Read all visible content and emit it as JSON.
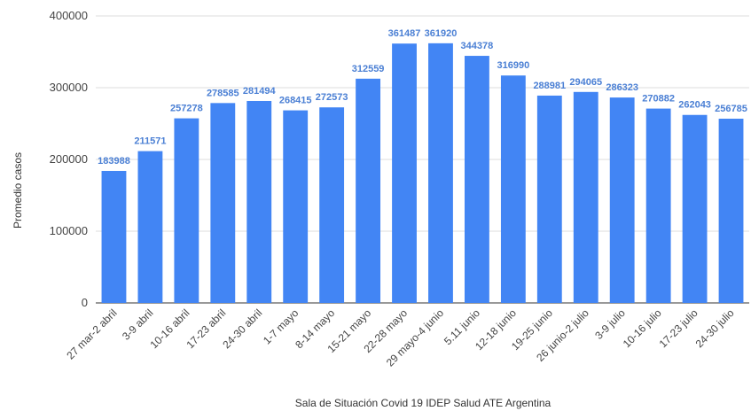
{
  "chart_data": {
    "type": "bar",
    "title": "",
    "ylabel": "Promedio casos",
    "xlabel": "Sala de Situación Covid 19 IDEP Salud ATE Argentina",
    "ylim": [
      0,
      400000
    ],
    "yticks": [
      0,
      100000,
      200000,
      300000,
      400000
    ],
    "grid": true,
    "bar_color": "#4285f4",
    "label_color": "#4a7fd4",
    "categories": [
      "27 mar-2 abril",
      "3-9 abril",
      "10-16 abril",
      "17-23 abril",
      "24-30 abril",
      "1-7 mayo",
      "8-14 mayo",
      "15-21 mayo",
      "22-28 mayo",
      "29 mayo-4 junio",
      "5.11 junio",
      "12-18 junio",
      "19-25 junio",
      "26 junio-2 julio",
      "3-9 julio",
      "10-16 julio",
      "17-23 julio",
      "24-30 julio"
    ],
    "values": [
      183988,
      211571,
      257278,
      278585,
      281494,
      268415,
      272573,
      312559,
      361487,
      361920,
      344378,
      316990,
      288981,
      294065,
      286323,
      270882,
      262043,
      256785
    ],
    "value_labels": [
      "183988",
      "211571",
      "257278",
      "278585",
      "281494",
      "268415",
      "272573",
      "312559",
      "361487",
      "361920",
      "344378",
      "316990",
      "288981",
      "294065",
      "286323",
      "270882",
      "262043",
      "256785"
    ]
  }
}
